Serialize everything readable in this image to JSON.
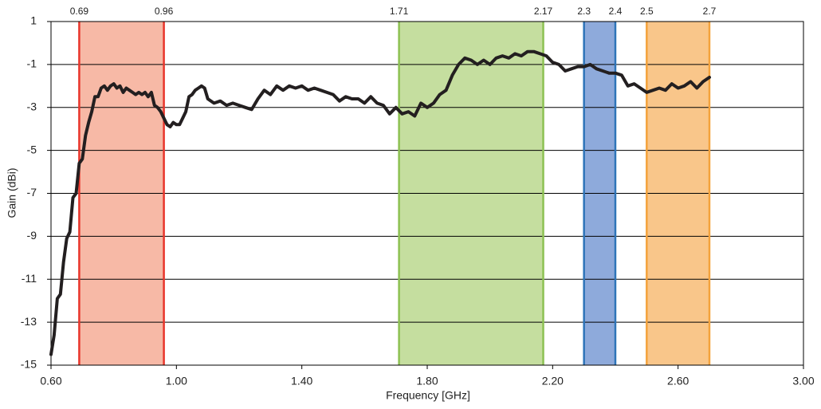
{
  "chart_data": {
    "type": "line",
    "x_label": "Frequency [GHz]",
    "y_label": "Gain (dBi)",
    "xlim": [
      0.6,
      3.0
    ],
    "xticks": [
      {
        "value": 0.6,
        "label": "0.60"
      },
      {
        "value": 1.0,
        "label": "1.00"
      },
      {
        "value": 1.4,
        "label": "1.40"
      },
      {
        "value": 1.8,
        "label": "1.80"
      },
      {
        "value": 2.2,
        "label": "2.20"
      },
      {
        "value": 2.6,
        "label": "2.60"
      },
      {
        "value": 3.0,
        "label": "3.00"
      }
    ],
    "ylim": [
      -15,
      1
    ],
    "yticks": [
      1,
      -1,
      -3,
      -5,
      -7,
      -9,
      -11,
      -13,
      -15
    ],
    "grid": true,
    "bands": [
      {
        "start": 0.69,
        "end": 0.96,
        "color": "#f7b9a6",
        "edge_color": "#e8352b"
      },
      {
        "start": 1.71,
        "end": 2.17,
        "color": "#c5de9f",
        "edge_color": "#8dc153"
      },
      {
        "start": 2.3,
        "end": 2.4,
        "color": "#8eaadb",
        "edge_color": "#2e74b8"
      },
      {
        "start": 2.5,
        "end": 2.7,
        "color": "#f9c68a",
        "edge_color": "#f4a23c"
      }
    ],
    "x": [
      0.6,
      0.61,
      0.62,
      0.63,
      0.64,
      0.65,
      0.66,
      0.67,
      0.68,
      0.69,
      0.7,
      0.71,
      0.72,
      0.73,
      0.74,
      0.75,
      0.76,
      0.77,
      0.78,
      0.79,
      0.8,
      0.81,
      0.82,
      0.83,
      0.84,
      0.85,
      0.86,
      0.87,
      0.88,
      0.89,
      0.9,
      0.91,
      0.92,
      0.93,
      0.94,
      0.95,
      0.96,
      0.97,
      0.98,
      0.99,
      1.0,
      1.01,
      1.02,
      1.03,
      1.04,
      1.05,
      1.06,
      1.07,
      1.08,
      1.09,
      1.1,
      1.12,
      1.14,
      1.16,
      1.18,
      1.2,
      1.22,
      1.24,
      1.26,
      1.28,
      1.3,
      1.32,
      1.34,
      1.36,
      1.38,
      1.4,
      1.42,
      1.44,
      1.46,
      1.48,
      1.5,
      1.52,
      1.54,
      1.56,
      1.58,
      1.6,
      1.62,
      1.64,
      1.66,
      1.68,
      1.7,
      1.72,
      1.74,
      1.76,
      1.78,
      1.8,
      1.82,
      1.84,
      1.86,
      1.88,
      1.9,
      1.92,
      1.94,
      1.96,
      1.98,
      2.0,
      2.02,
      2.04,
      2.06,
      2.08,
      2.1,
      2.12,
      2.14,
      2.16,
      2.18,
      2.2,
      2.22,
      2.24,
      2.26,
      2.28,
      2.3,
      2.32,
      2.34,
      2.36,
      2.38,
      2.4,
      2.42,
      2.44,
      2.46,
      2.48,
      2.5,
      2.52,
      2.54,
      2.56,
      2.58,
      2.6,
      2.62,
      2.64,
      2.66,
      2.68,
      2.7
    ],
    "series": [
      {
        "color": "#231f20",
        "values": [
          -14.5,
          -13.6,
          -11.9,
          -11.7,
          -10.2,
          -9.1,
          -8.8,
          -7.2,
          -7.0,
          -5.6,
          -5.4,
          -4.3,
          -3.7,
          -3.2,
          -2.5,
          -2.5,
          -2.1,
          -2.0,
          -2.2,
          -2.0,
          -1.9,
          -2.1,
          -2.0,
          -2.3,
          -2.1,
          -2.2,
          -2.3,
          -2.4,
          -2.3,
          -2.4,
          -2.3,
          -2.5,
          -2.3,
          -2.9,
          -3.0,
          -3.2,
          -3.5,
          -3.8,
          -3.9,
          -3.7,
          -3.8,
          -3.8,
          -3.5,
          -3.2,
          -2.5,
          -2.4,
          -2.2,
          -2.1,
          -2.0,
          -2.1,
          -2.6,
          -2.8,
          -2.7,
          -2.9,
          -2.8,
          -2.9,
          -3.0,
          -3.1,
          -2.6,
          -2.2,
          -2.4,
          -2.0,
          -2.2,
          -2.0,
          -2.1,
          -2.0,
          -2.2,
          -2.1,
          -2.2,
          -2.3,
          -2.4,
          -2.7,
          -2.5,
          -2.6,
          -2.6,
          -2.8,
          -2.5,
          -2.8,
          -2.9,
          -3.3,
          -3.0,
          -3.3,
          -3.2,
          -3.4,
          -2.8,
          -3.0,
          -2.8,
          -2.4,
          -2.2,
          -1.5,
          -1.0,
          -0.7,
          -0.8,
          -1.0,
          -0.8,
          -1.0,
          -0.7,
          -0.6,
          -0.7,
          -0.5,
          -0.6,
          -0.4,
          -0.4,
          -0.5,
          -0.6,
          -0.9,
          -1.0,
          -1.3,
          -1.2,
          -1.1,
          -1.1,
          -1.0,
          -1.2,
          -1.3,
          -1.4,
          -1.4,
          -1.5,
          -2.0,
          -1.9,
          -2.1,
          -2.3,
          -2.2,
          -2.1,
          -2.2,
          -1.9,
          -2.1,
          -2.0,
          -1.8,
          -2.1,
          -1.8,
          -1.6
        ]
      }
    ]
  }
}
